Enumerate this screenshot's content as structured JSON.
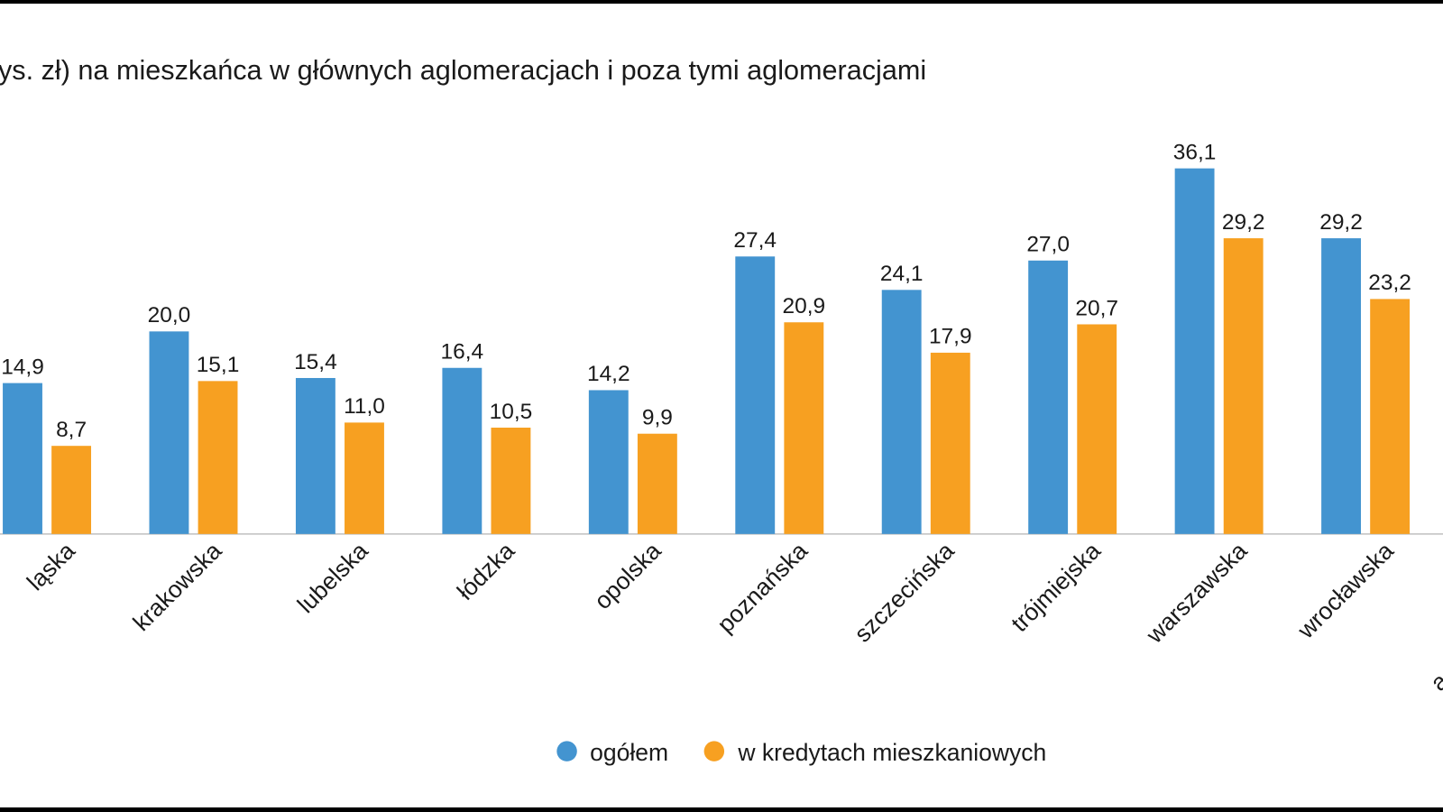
{
  "chart_data": {
    "type": "bar",
    "title": "ys. zł) na mieszkańca w głównych aglomeracjach i poza tymi aglomeracjami",
    "categories": [
      "ląska",
      "krakowska",
      "lubelska",
      "łódzka",
      "opolska",
      "poznańska",
      "szczecińska",
      "trójmiejska",
      "warszawska",
      "wrocławska",
      "aglom"
    ],
    "series": [
      {
        "name": "ogółem",
        "color": "#4394d0",
        "values": [
          14.9,
          20.0,
          15.4,
          16.4,
          14.2,
          27.4,
          24.1,
          27.0,
          36.1,
          29.2,
          null
        ],
        "value_labels": [
          "14,9",
          "20,0",
          "15,4",
          "16,4",
          "14,2",
          "27,4",
          "24,1",
          "27,0",
          "36,1",
          "29,2",
          null
        ]
      },
      {
        "name": "w kredytach mieszkaniowych",
        "color": "#f7a021",
        "values": [
          8.7,
          15.1,
          11.0,
          10.5,
          9.9,
          20.9,
          17.9,
          20.7,
          29.2,
          23.2,
          null
        ],
        "value_labels": [
          "8,7",
          "15,1",
          "11,0",
          "10,5",
          "9,9",
          "20,9",
          "17,9",
          "20,7",
          "29,2",
          "23,2",
          null
        ]
      }
    ],
    "legend": "bottom"
  }
}
